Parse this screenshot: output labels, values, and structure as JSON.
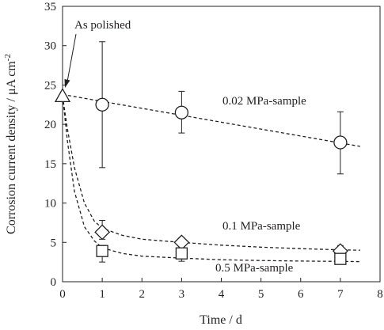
{
  "chart_data": {
    "type": "scatter",
    "title": "",
    "xlabel": "Time / d",
    "ylabel_main": "Corrosion current density / μA cm",
    "ylabel_sup": "-2",
    "xlim": [
      0,
      8
    ],
    "ylim": [
      0,
      35
    ],
    "xticks": [
      0,
      1,
      2,
      3,
      4,
      5,
      6,
      7,
      8
    ],
    "yticks": [
      0,
      5,
      10,
      15,
      20,
      25,
      30,
      35
    ],
    "grid": false,
    "legend": "none",
    "origin": {
      "label": "As polished",
      "marker": "triangle",
      "x": 0,
      "y": 23.6
    },
    "series": [
      {
        "name": "0.02 MPa-sample",
        "marker": "circle",
        "x": [
          1,
          3,
          7
        ],
        "y": [
          22.5,
          21.5,
          17.7
        ],
        "err_low": [
          14.5,
          18.9,
          13.7
        ],
        "err_high": [
          30.5,
          24.2,
          21.6
        ],
        "trend": [
          [
            0,
            23.8
          ],
          [
            7.5,
            17.2
          ]
        ]
      },
      {
        "name": "0.1 MPa-sample",
        "marker": "diamond",
        "x": [
          1,
          3,
          7
        ],
        "y": [
          6.3,
          5.0,
          3.9
        ],
        "err_low": [
          5.4,
          4.2,
          3.2
        ],
        "err_high": [
          7.8,
          5.6,
          4.6
        ],
        "trend": [
          [
            0,
            23.6
          ],
          [
            0.12,
            19.5
          ],
          [
            0.3,
            14.5
          ],
          [
            0.55,
            10.0
          ],
          [
            0.8,
            7.7
          ],
          [
            1,
            6.8
          ],
          [
            1.5,
            5.9
          ],
          [
            2,
            5.4
          ],
          [
            3,
            5.0
          ],
          [
            4,
            4.65
          ],
          [
            5,
            4.4
          ],
          [
            6,
            4.2
          ],
          [
            7,
            4.05
          ],
          [
            7.5,
            4.0
          ]
        ]
      },
      {
        "name": "0.5 MPa-sample",
        "marker": "square",
        "x": [
          1,
          3,
          7
        ],
        "y": [
          3.9,
          3.6,
          2.9
        ],
        "err_low": [
          2.5,
          2.6,
          2.3
        ],
        "err_high": [
          4.6,
          4.5,
          3.6
        ],
        "trend": [
          [
            0,
            23.6
          ],
          [
            0.12,
            18.0
          ],
          [
            0.3,
            11.5
          ],
          [
            0.55,
            7.0
          ],
          [
            0.8,
            5.2
          ],
          [
            1,
            4.3
          ],
          [
            1.5,
            3.6
          ],
          [
            2,
            3.25
          ],
          [
            3,
            3.0
          ],
          [
            4,
            2.8
          ],
          [
            5,
            2.7
          ],
          [
            6,
            2.62
          ],
          [
            7,
            2.58
          ],
          [
            7.5,
            2.55
          ]
        ]
      }
    ],
    "annotations": [
      {
        "text": "0.02 MPa-sample",
        "series": 0
      },
      {
        "text": "0.1 MPa-sample",
        "series": 1
      },
      {
        "text": "0.5 MPa-sample",
        "series": 2
      }
    ]
  }
}
